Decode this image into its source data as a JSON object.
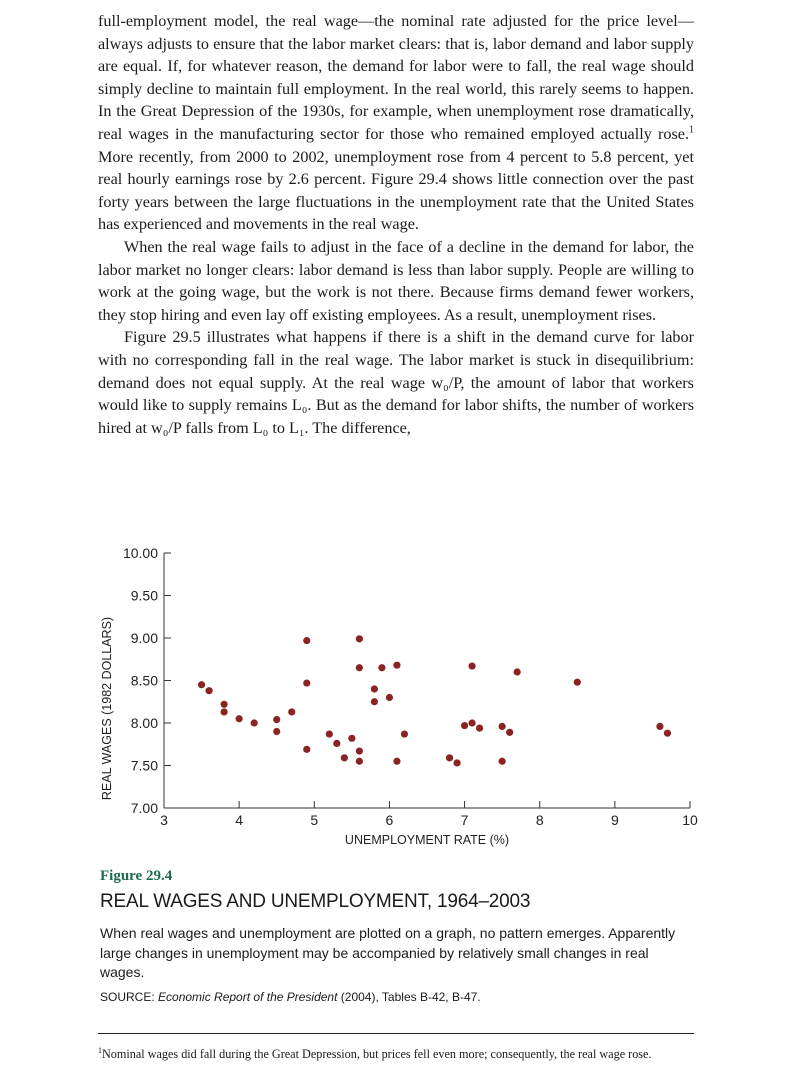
{
  "body": {
    "p1": "full-employment model, the real wage—the nominal rate adjusted for the price level—always adjusts to ensure that the labor market clears: that is, labor demand and labor supply are equal. If, for whatever reason, the demand for labor were to fall, the real wage should simply decline to maintain full employment. In the real world, this rarely seems to happen. In the Great Depression of the 1930s, for example, when unemployment rose dramatically, real wages in the manufacturing sector for those who remained employed actually rose.",
    "p1_sup": "1",
    "p1_end": " More recently, from 2000 to 2002, unemployment rose from 4 percent to 5.8 percent, yet real hourly earnings rose by 2.6 percent. Figure 29.4 shows little connection over the past forty years between the large fluctuations in the unemployment rate that the United States has experienced and movements in the real wage.",
    "p2": "When the real wage fails to adjust in the face of a decline in the demand for labor, the labor market no longer clears: labor demand is less than labor supply. People are willing to work at the going wage, but the work is not there. Because firms demand fewer workers, they stop hiring and even lay off existing employees. As a result, unemployment rises.",
    "p3": "Figure 29.5 illustrates what happens if there is a shift in the demand curve for labor with no corresponding fall in the real wage. The labor market is stuck in disequilibrium: demand does not equal supply. At the real wage w₀/P, the amount of labor that workers would like to supply remains L₀. But as the demand for labor shifts, the number of workers hired at w₀/P falls from L₀ to L₁. The difference,"
  },
  "chart_data": {
    "type": "scatter",
    "xlabel": "UNEMPLOYMENT RATE (%)",
    "ylabel": "REAL WAGES (1982 DOLLARS)",
    "xlim": [
      3,
      10
    ],
    "ylim": [
      7.0,
      10.0
    ],
    "x_ticks": [
      "3",
      "4",
      "5",
      "6",
      "7",
      "8",
      "9",
      "10"
    ],
    "y_ticks": [
      "7.00",
      "7.50",
      "8.00",
      "8.50",
      "9.00",
      "9.50",
      "10.00"
    ],
    "point_color": "#8b2323",
    "points": [
      [
        3.5,
        8.45
      ],
      [
        3.6,
        8.38
      ],
      [
        3.8,
        8.22
      ],
      [
        3.8,
        8.13
      ],
      [
        4.0,
        8.05
      ],
      [
        4.2,
        8.0
      ],
      [
        4.5,
        8.04
      ],
      [
        4.5,
        7.9
      ],
      [
        4.7,
        8.13
      ],
      [
        4.9,
        8.97
      ],
      [
        4.9,
        8.47
      ],
      [
        4.9,
        7.69
      ],
      [
        5.2,
        7.87
      ],
      [
        5.3,
        7.76
      ],
      [
        5.4,
        7.59
      ],
      [
        5.5,
        7.82
      ],
      [
        5.6,
        8.99
      ],
      [
        5.6,
        8.65
      ],
      [
        5.6,
        7.67
      ],
      [
        5.6,
        7.55
      ],
      [
        5.8,
        8.4
      ],
      [
        5.8,
        8.25
      ],
      [
        5.9,
        8.65
      ],
      [
        6.0,
        8.3
      ],
      [
        6.1,
        8.68
      ],
      [
        6.1,
        7.55
      ],
      [
        6.2,
        7.87
      ],
      [
        6.8,
        7.59
      ],
      [
        6.9,
        7.53
      ],
      [
        7.0,
        7.97
      ],
      [
        7.1,
        8.0
      ],
      [
        7.1,
        8.67
      ],
      [
        7.2,
        7.94
      ],
      [
        7.5,
        7.96
      ],
      [
        7.5,
        7.55
      ],
      [
        7.6,
        7.89
      ],
      [
        7.7,
        8.6
      ],
      [
        8.5,
        8.48
      ],
      [
        9.6,
        7.96
      ],
      [
        9.7,
        7.88
      ]
    ]
  },
  "figure": {
    "label": "Figure 29.4",
    "title": "REAL WAGES AND UNEMPLOYMENT, 1964–2003",
    "description": "When real wages and unemployment are plotted on a graph, no pattern emerges. Apparently large changes in unemployment may be accompanied by relatively small changes in real wages.",
    "source_prefix": "SOURCE: ",
    "source_title": "Economic Report of the President",
    "source_rest": " (2004), Tables B-42, B-47."
  },
  "footnote": {
    "marker": "1",
    "text": "Nominal wages did fall during the Great Depression, but prices fell even more; consequently, the real wage rose."
  }
}
